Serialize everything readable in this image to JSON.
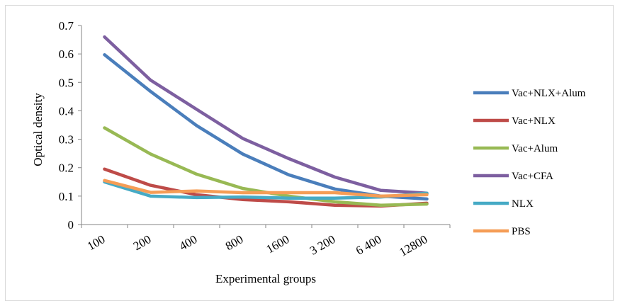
{
  "chart_data": {
    "type": "line",
    "title": "",
    "xlabel": "Experimental groups",
    "ylabel": "Optical density",
    "categories": [
      "100",
      "200",
      "400",
      "800",
      "1600",
      "3 200",
      "6 400",
      "12800"
    ],
    "ylim": [
      0,
      0.7
    ],
    "yticks": [
      "0",
      "0.1",
      "0.2",
      "0.3",
      "0.4",
      "0.5",
      "0.6",
      "0.7"
    ],
    "grid": false,
    "legend_position": "right",
    "series": [
      {
        "name": "Vac+NLX+Alum",
        "color": "#4a7ebb",
        "values": [
          0.597,
          0.468,
          0.348,
          0.248,
          0.175,
          0.125,
          0.1,
          0.09
        ]
      },
      {
        "name": "Vac+NLX",
        "color": "#be4b48",
        "values": [
          0.195,
          0.138,
          0.105,
          0.088,
          0.08,
          0.068,
          0.065,
          0.075
        ]
      },
      {
        "name": "Vac+Alum",
        "color": "#98b954",
        "values": [
          0.34,
          0.248,
          0.177,
          0.127,
          0.1,
          0.08,
          0.068,
          0.072
        ]
      },
      {
        "name": "Vac+CFA",
        "color": "#7d5fa0",
        "values": [
          0.66,
          0.508,
          0.405,
          0.303,
          0.232,
          0.167,
          0.12,
          0.11
        ]
      },
      {
        "name": "NLX",
        "color": "#46aac5",
        "values": [
          0.15,
          0.1,
          0.095,
          0.097,
          0.093,
          0.093,
          0.097,
          0.11
        ]
      },
      {
        "name": "PBS",
        "color": "#f59d56",
        "values": [
          0.155,
          0.113,
          0.118,
          0.112,
          0.112,
          0.112,
          0.1,
          0.105
        ]
      }
    ]
  }
}
